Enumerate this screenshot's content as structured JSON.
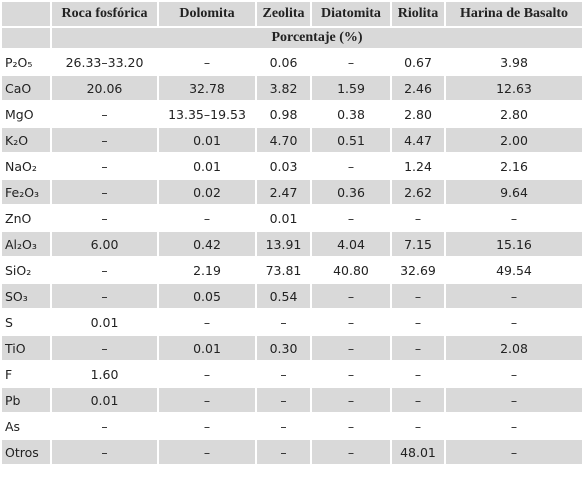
{
  "table": {
    "columns": [
      "Roca fosfórica",
      "Dolomita",
      "Zeolita",
      "Diatomita",
      "Riolita",
      "Harina de Basalto"
    ],
    "subheader": "Porcentaje (%)",
    "rows": [
      [
        "P₂O₅",
        "26.33–33.20",
        "–",
        "0.06",
        "–",
        "0.67",
        "3.98"
      ],
      [
        "CaO",
        "20.06",
        "32.78",
        "3.82",
        "1.59",
        "2.46",
        "12.63"
      ],
      [
        "MgO",
        "–",
        "13.35–19.53",
        "0.98",
        "0.38",
        "2.80",
        "2.80"
      ],
      [
        "K₂O",
        "–",
        "0.01",
        "4.70",
        "0.51",
        "4.47",
        "2.00"
      ],
      [
        "NaO₂",
        "–",
        "0.01",
        "0.03",
        "–",
        "1.24",
        "2.16"
      ],
      [
        "Fe₂O₃",
        "–",
        "0.02",
        "2.47",
        "0.36",
        "2.62",
        "9.64"
      ],
      [
        "ZnO",
        "–",
        "–",
        "0.01",
        "–",
        "–",
        "–"
      ],
      [
        "Al₂O₃",
        "6.00",
        "0.42",
        "13.91",
        "4.04",
        "7.15",
        "15.16"
      ],
      [
        "SiO₂",
        "–",
        "2.19",
        "73.81",
        "40.80",
        "32.69",
        "49.54"
      ],
      [
        "SO₃",
        "–",
        "0.05",
        "0.54",
        "–",
        "–",
        "–"
      ],
      [
        "S",
        "0.01",
        "–",
        "–",
        "–",
        "–",
        "–"
      ],
      [
        "TiO",
        "–",
        "0.01",
        "0.30",
        "–",
        "–",
        "2.08"
      ],
      [
        "F",
        "1.60",
        "–",
        "–",
        "–",
        "–",
        "–"
      ],
      [
        "Pb",
        "0.01",
        "–",
        "–",
        "–",
        "–",
        "–"
      ],
      [
        "As",
        "–",
        "–",
        "–",
        "–",
        "–",
        "–"
      ],
      [
        "Otros",
        "–",
        "–",
        "–",
        "–",
        "48.01",
        "–"
      ]
    ]
  }
}
